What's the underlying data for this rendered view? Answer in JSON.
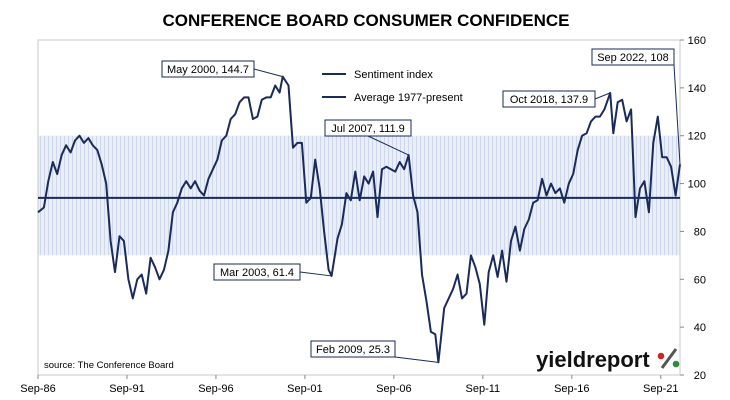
{
  "chart_data": {
    "type": "line",
    "title": "CONFERENCE BOARD CONSUMER CONFIDENCE",
    "xlabel": "",
    "ylabel": "",
    "x_tick_labels": [
      "Sep-86",
      "Sep-91",
      "Sep-96",
      "Sep-01",
      "Sep-06",
      "Sep-11",
      "Sep-16",
      "Sep-21"
    ],
    "x_range": [
      1986.67,
      2022.75
    ],
    "ylim": [
      20,
      160
    ],
    "y_ticks": [
      20,
      40,
      60,
      80,
      100,
      120,
      140,
      160
    ],
    "y_axis_side": "right",
    "grid": false,
    "legend_placement": "top-center",
    "band": {
      "from": 70,
      "to": 120
    },
    "series": [
      {
        "name": "Sentiment index",
        "points": [
          [
            1986.67,
            88
          ],
          [
            1987.0,
            90
          ],
          [
            1987.25,
            101
          ],
          [
            1987.5,
            109
          ],
          [
            1987.75,
            104
          ],
          [
            1988.0,
            112
          ],
          [
            1988.25,
            116
          ],
          [
            1988.5,
            113
          ],
          [
            1988.75,
            118
          ],
          [
            1989.0,
            120
          ],
          [
            1989.25,
            117
          ],
          [
            1989.5,
            119
          ],
          [
            1989.75,
            116
          ],
          [
            1990.0,
            114
          ],
          [
            1990.25,
            108
          ],
          [
            1990.5,
            100
          ],
          [
            1990.75,
            76
          ],
          [
            1991.0,
            63
          ],
          [
            1991.25,
            78
          ],
          [
            1991.5,
            76
          ],
          [
            1991.75,
            60
          ],
          [
            1992.0,
            52
          ],
          [
            1992.25,
            60
          ],
          [
            1992.5,
            62
          ],
          [
            1992.75,
            54
          ],
          [
            1993.0,
            69
          ],
          [
            1993.25,
            65
          ],
          [
            1993.5,
            60
          ],
          [
            1993.75,
            64
          ],
          [
            1994.0,
            72
          ],
          [
            1994.25,
            88
          ],
          [
            1994.5,
            92
          ],
          [
            1994.75,
            98
          ],
          [
            1995.0,
            101
          ],
          [
            1995.25,
            98
          ],
          [
            1995.5,
            101
          ],
          [
            1995.75,
            97
          ],
          [
            1996.0,
            95
          ],
          [
            1996.25,
            102
          ],
          [
            1996.5,
            106
          ],
          [
            1996.75,
            110
          ],
          [
            1997.0,
            118
          ],
          [
            1997.25,
            120
          ],
          [
            1997.5,
            127
          ],
          [
            1997.75,
            129
          ],
          [
            1998.0,
            134
          ],
          [
            1998.25,
            136
          ],
          [
            1998.5,
            136
          ],
          [
            1998.75,
            127
          ],
          [
            1999.0,
            128
          ],
          [
            1999.25,
            135
          ],
          [
            1999.5,
            136
          ],
          [
            1999.75,
            136
          ],
          [
            2000.0,
            141
          ],
          [
            2000.25,
            138
          ],
          [
            2000.42,
            144.7
          ],
          [
            2000.75,
            141
          ],
          [
            2001.0,
            115
          ],
          [
            2001.25,
            117
          ],
          [
            2001.5,
            117
          ],
          [
            2001.75,
            92
          ],
          [
            2002.0,
            94
          ],
          [
            2002.25,
            110
          ],
          [
            2002.5,
            98
          ],
          [
            2002.75,
            80
          ],
          [
            2003.0,
            64
          ],
          [
            2003.17,
            61.4
          ],
          [
            2003.5,
            77
          ],
          [
            2003.75,
            83
          ],
          [
            2004.0,
            96
          ],
          [
            2004.25,
            93
          ],
          [
            2004.5,
            105
          ],
          [
            2004.75,
            93
          ],
          [
            2005.0,
            103
          ],
          [
            2005.25,
            100
          ],
          [
            2005.5,
            105
          ],
          [
            2005.75,
            86
          ],
          [
            2006.0,
            106
          ],
          [
            2006.25,
            107
          ],
          [
            2006.5,
            106
          ],
          [
            2006.75,
            105
          ],
          [
            2007.0,
            109
          ],
          [
            2007.25,
            106
          ],
          [
            2007.5,
            111.9
          ],
          [
            2007.75,
            95
          ],
          [
            2008.0,
            88
          ],
          [
            2008.25,
            62
          ],
          [
            2008.5,
            51
          ],
          [
            2008.75,
            38
          ],
          [
            2009.0,
            37
          ],
          [
            2009.17,
            25.3
          ],
          [
            2009.5,
            48
          ],
          [
            2009.75,
            52
          ],
          [
            2010.0,
            56
          ],
          [
            2010.25,
            62
          ],
          [
            2010.5,
            52
          ],
          [
            2010.75,
            54
          ],
          [
            2011.0,
            70
          ],
          [
            2011.25,
            65
          ],
          [
            2011.5,
            58
          ],
          [
            2011.75,
            41
          ],
          [
            2012.0,
            63
          ],
          [
            2012.25,
            70
          ],
          [
            2012.5,
            61
          ],
          [
            2012.75,
            72
          ],
          [
            2013.0,
            59
          ],
          [
            2013.25,
            76
          ],
          [
            2013.5,
            82
          ],
          [
            2013.75,
            72
          ],
          [
            2014.0,
            81
          ],
          [
            2014.25,
            85
          ],
          [
            2014.5,
            92
          ],
          [
            2014.75,
            93
          ],
          [
            2015.0,
            102
          ],
          [
            2015.25,
            95
          ],
          [
            2015.5,
            100
          ],
          [
            2015.75,
            96
          ],
          [
            2016.0,
            98
          ],
          [
            2016.25,
            92
          ],
          [
            2016.5,
            100
          ],
          [
            2016.75,
            104
          ],
          [
            2017.0,
            114
          ],
          [
            2017.25,
            120
          ],
          [
            2017.5,
            121
          ],
          [
            2017.75,
            126
          ],
          [
            2018.0,
            128
          ],
          [
            2018.25,
            128
          ],
          [
            2018.5,
            131
          ],
          [
            2018.83,
            137.9
          ],
          [
            2019.0,
            121
          ],
          [
            2019.25,
            134
          ],
          [
            2019.5,
            135
          ],
          [
            2019.75,
            126
          ],
          [
            2020.0,
            131
          ],
          [
            2020.25,
            86
          ],
          [
            2020.5,
            98
          ],
          [
            2020.75,
            101
          ],
          [
            2021.0,
            88
          ],
          [
            2021.25,
            117
          ],
          [
            2021.5,
            128
          ],
          [
            2021.75,
            111
          ],
          [
            2022.0,
            111
          ],
          [
            2022.25,
            107
          ],
          [
            2022.5,
            95
          ],
          [
            2022.75,
            108
          ]
        ]
      },
      {
        "name": "Average 1977-present",
        "points": [
          [
            1986.67,
            94
          ],
          [
            2022.75,
            94
          ]
        ]
      }
    ],
    "annotations": [
      {
        "label": "May 2000, 144.7",
        "x": 2000.42,
        "y": 144.7
      },
      {
        "label": "Jul 2007, 111.9",
        "x": 2007.5,
        "y": 111.9
      },
      {
        "label": "Mar 2003, 61.4",
        "x": 2003.17,
        "y": 61.4
      },
      {
        "label": "Feb 2009, 25.3",
        "x": 2009.17,
        "y": 25.3
      },
      {
        "label": "Oct 2018, 137.9",
        "x": 2018.83,
        "y": 137.9
      },
      {
        "label": "Sep 2022, 108",
        "x": 2022.75,
        "y": 108
      }
    ],
    "source_note": "source: The Conference Board"
  },
  "logo": {
    "text": "yieldreport",
    "mark": "%"
  },
  "colors": {
    "line": "#1a2a5a",
    "band": "#dfe6f2",
    "logo_red": "#c62828",
    "logo_green": "#2e8b3a"
  }
}
